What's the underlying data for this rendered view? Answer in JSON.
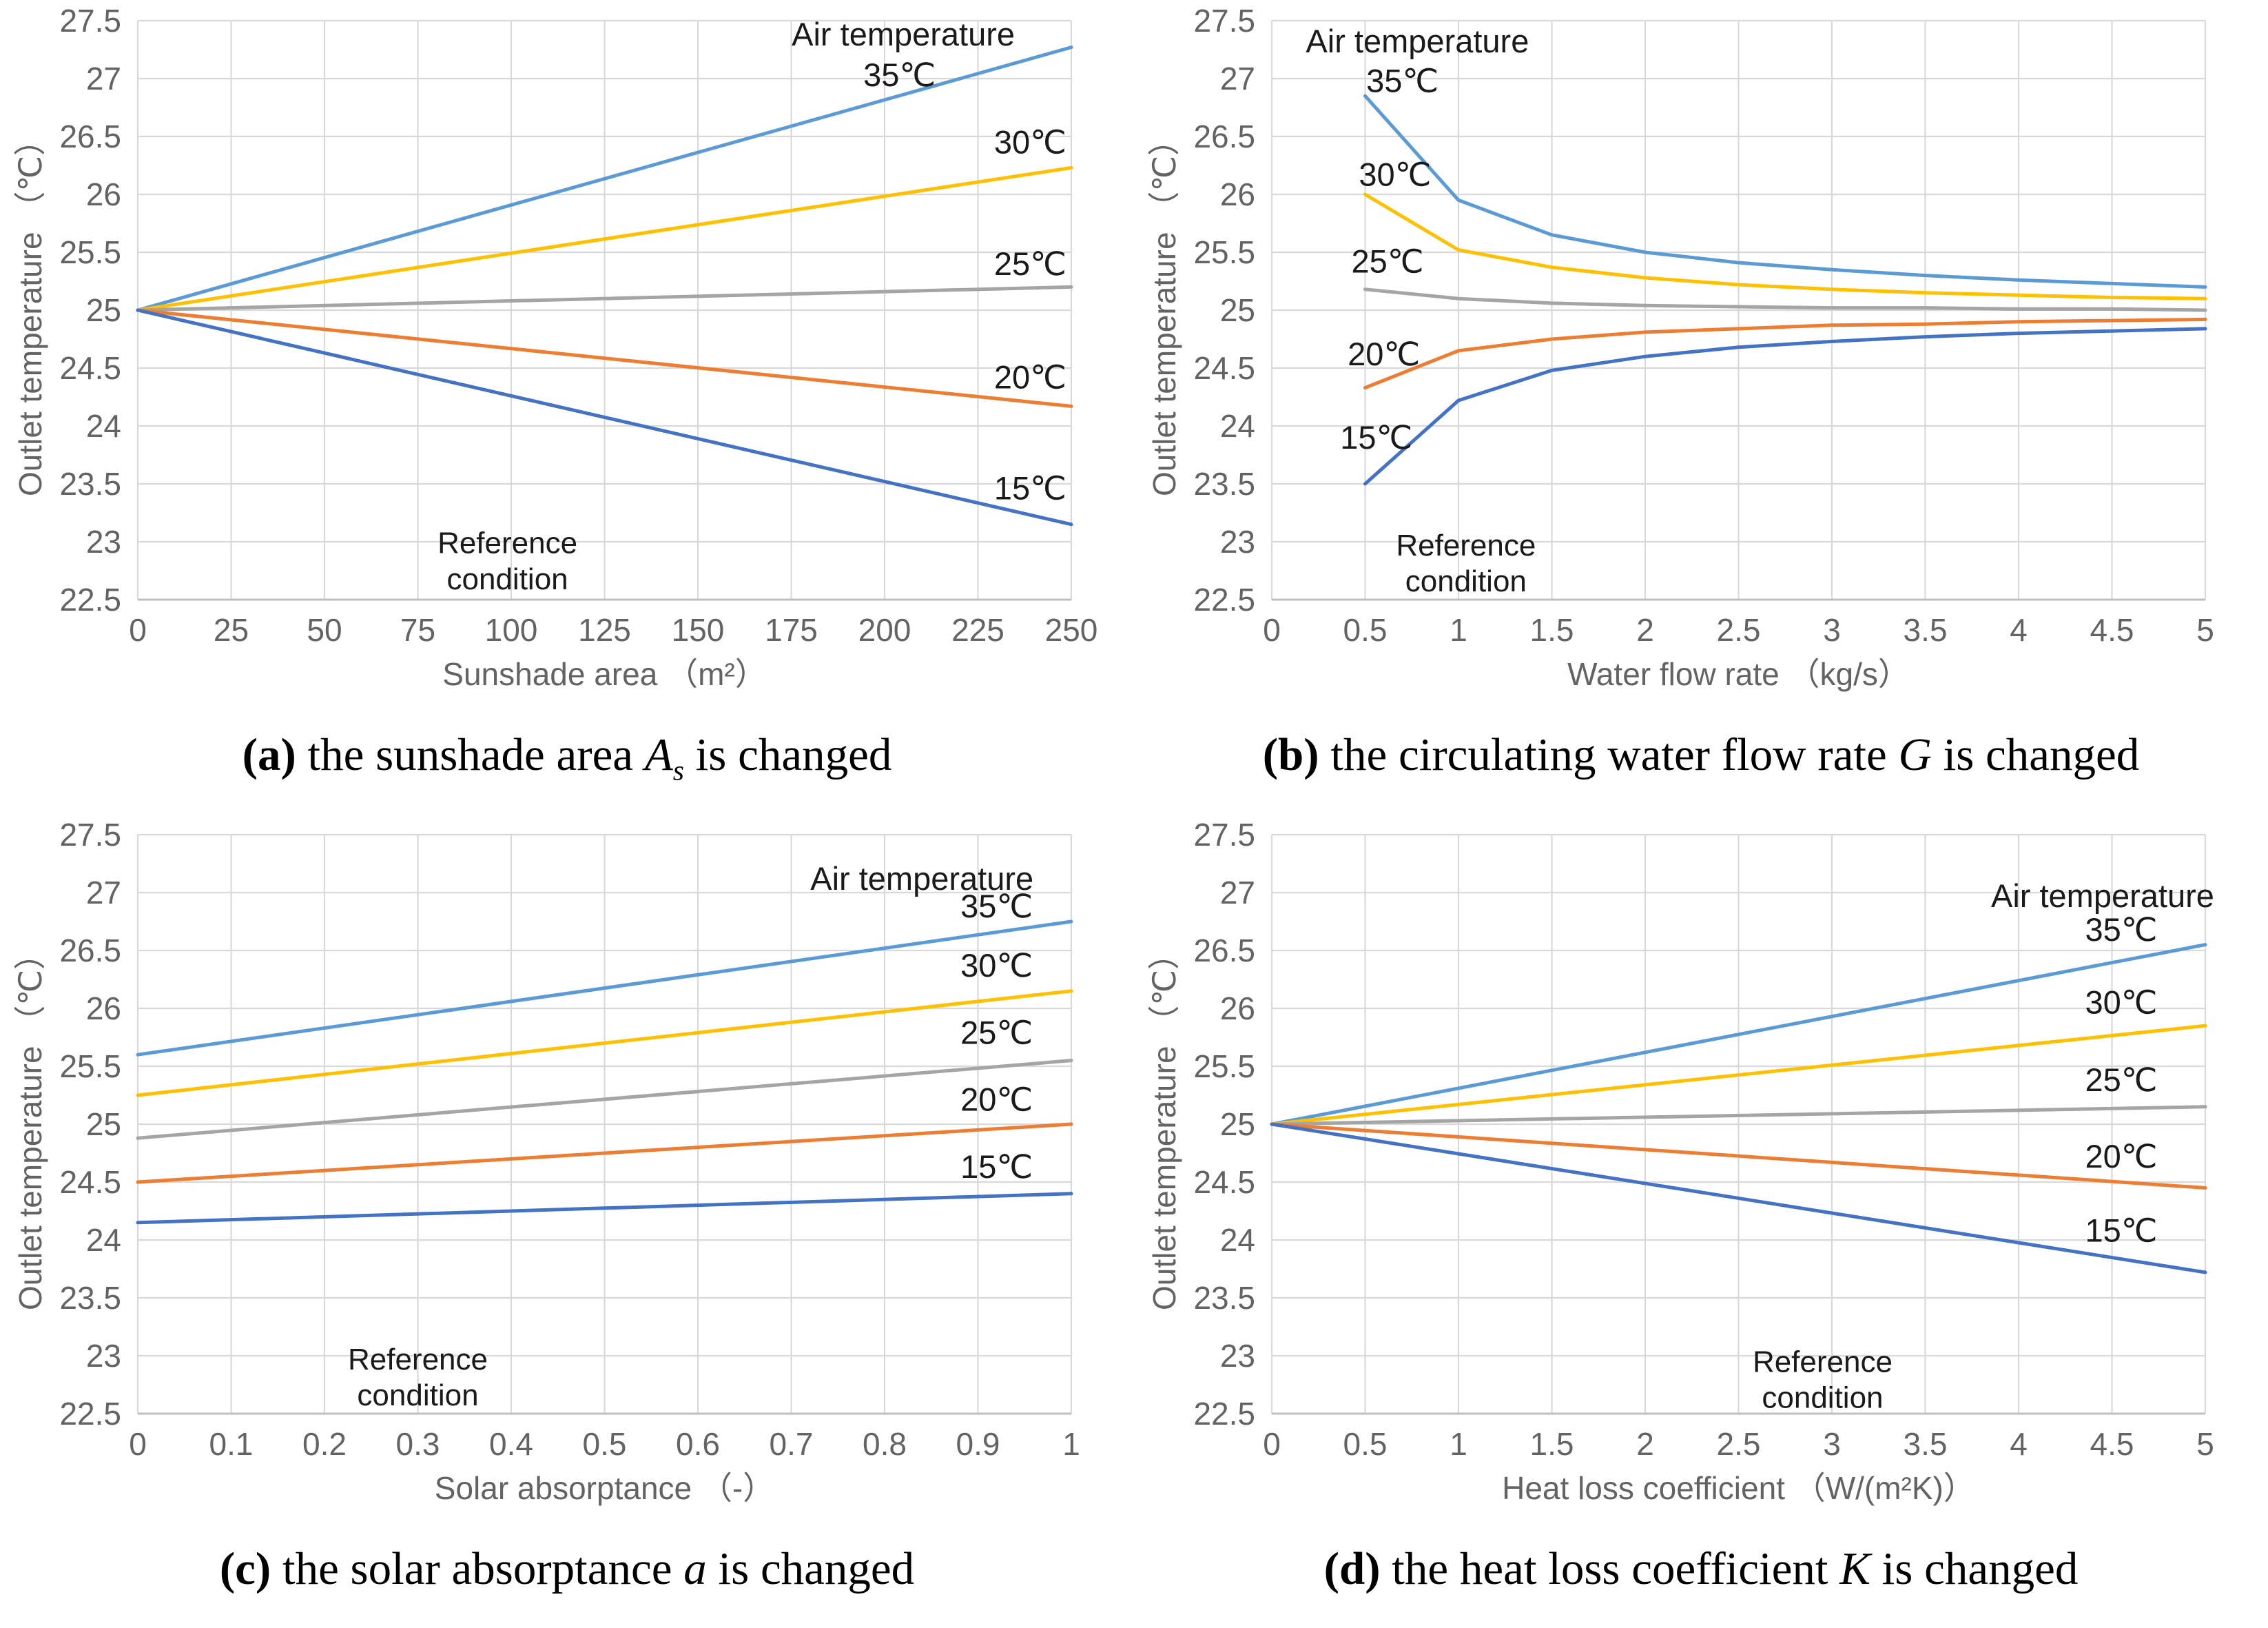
{
  "colors": {
    "series_35": "#5B9BD5",
    "series_30": "#FFC000",
    "series_25": "#A5A5A5",
    "series_20": "#ED7D31",
    "series_15": "#4472C4",
    "grid": "#D9D9D9",
    "axis_line": "#BFBFBF",
    "axis_text": "#636363",
    "annotation_text": "#1A1A1A"
  },
  "chart_data": [
    {
      "id": "a",
      "type": "line",
      "xlabel": "Sunshade area （m²）",
      "ylabel": "Outlet temperature （℃）",
      "xlim": [
        0,
        250
      ],
      "ylim": [
        22.5,
        27.5
      ],
      "xticks": [
        "0",
        "25",
        "50",
        "75",
        "100",
        "125",
        "150",
        "175",
        "200",
        "225",
        "250"
      ],
      "yticks": [
        "22.5",
        "23",
        "23.5",
        "24",
        "24.5",
        "25",
        "25.5",
        "26",
        "26.5",
        "27",
        "27.5"
      ],
      "grid": true,
      "legend_header": {
        "text": "Air temperature",
        "x": 205,
        "y": 27.38
      },
      "series": [
        {
          "name": "35℃",
          "key": "35c",
          "color_key": "series_35",
          "x": [
            0,
            250
          ],
          "y": [
            25.0,
            27.27
          ],
          "label": {
            "x": 204,
            "y": 27.03
          }
        },
        {
          "name": "30℃",
          "key": "30c",
          "color_key": "series_30",
          "x": [
            0,
            250
          ],
          "y": [
            25.0,
            26.23
          ],
          "label": {
            "x": 239,
            "y": 26.45
          }
        },
        {
          "name": "25℃",
          "key": "25c",
          "color_key": "series_25",
          "x": [
            0,
            250
          ],
          "y": [
            25.0,
            25.2
          ],
          "label": {
            "x": 239,
            "y": 25.4
          }
        },
        {
          "name": "20℃",
          "key": "20c",
          "color_key": "series_20",
          "x": [
            0,
            250
          ],
          "y": [
            25.0,
            24.17
          ],
          "label": {
            "x": 239,
            "y": 24.42
          }
        },
        {
          "name": "15℃",
          "key": "15c",
          "color_key": "series_15",
          "x": [
            0,
            250
          ],
          "y": [
            25.0,
            23.15
          ],
          "label": {
            "x": 239,
            "y": 23.46
          }
        }
      ],
      "reference": {
        "lines": [
          "Reference",
          "condition"
        ],
        "x": 99,
        "y": 22.99,
        "line_gap": 0.31
      },
      "caption": {
        "label": "(a)",
        "pre": " the sunshade area ",
        "var": "A",
        "var_sub": "s",
        "post": " is changed"
      }
    },
    {
      "id": "b",
      "type": "line",
      "xlabel": "Water flow rate （kg/s）",
      "ylabel": "Outlet temperature （℃）",
      "xlim": [
        0,
        5
      ],
      "ylim": [
        22.5,
        27.5
      ],
      "xticks": [
        "0",
        "0.5",
        "1",
        "1.5",
        "2",
        "2.5",
        "3",
        "3.5",
        "4",
        "4.5",
        "5"
      ],
      "yticks": [
        "22.5",
        "23",
        "23.5",
        "24",
        "24.5",
        "25",
        "25.5",
        "26",
        "26.5",
        "27",
        "27.5"
      ],
      "grid": true,
      "legend_header": {
        "text": "Air temperature",
        "x": 0.78,
        "y": 27.32
      },
      "series": [
        {
          "name": "35℃",
          "key": "35c",
          "color_key": "series_35",
          "x": [
            0.5,
            1,
            1.5,
            2,
            2.5,
            3,
            3.5,
            4,
            4.5,
            5
          ],
          "y": [
            26.85,
            25.95,
            25.65,
            25.5,
            25.41,
            25.35,
            25.3,
            25.26,
            25.23,
            25.2
          ],
          "label": {
            "x": 0.7,
            "y": 26.98
          }
        },
        {
          "name": "30℃",
          "key": "30c",
          "color_key": "series_30",
          "x": [
            0.5,
            1,
            1.5,
            2,
            2.5,
            3,
            3.5,
            4,
            4.5,
            5
          ],
          "y": [
            26.0,
            25.52,
            25.37,
            25.28,
            25.22,
            25.18,
            25.15,
            25.13,
            25.11,
            25.1
          ],
          "label": {
            "x": 0.66,
            "y": 26.17
          }
        },
        {
          "name": "25℃",
          "key": "25c",
          "color_key": "series_25",
          "x": [
            0.5,
            1,
            1.5,
            2,
            2.5,
            3,
            3.5,
            4,
            4.5,
            5
          ],
          "y": [
            25.18,
            25.1,
            25.06,
            25.04,
            25.03,
            25.02,
            25.02,
            25.01,
            25.01,
            25.0
          ],
          "label": {
            "x": 0.62,
            "y": 25.42
          }
        },
        {
          "name": "20℃",
          "key": "20c",
          "color_key": "series_20",
          "x": [
            0.5,
            1,
            1.5,
            2,
            2.5,
            3,
            3.5,
            4,
            4.5,
            5
          ],
          "y": [
            24.33,
            24.65,
            24.75,
            24.81,
            24.84,
            24.87,
            24.88,
            24.9,
            24.91,
            24.92
          ],
          "label": {
            "x": 0.6,
            "y": 24.62
          }
        },
        {
          "name": "15℃",
          "key": "15c",
          "color_key": "series_15",
          "x": [
            0.5,
            1,
            1.5,
            2,
            2.5,
            3,
            3.5,
            4,
            4.5,
            5
          ],
          "y": [
            23.5,
            24.22,
            24.48,
            24.6,
            24.68,
            24.73,
            24.77,
            24.8,
            24.82,
            24.84
          ],
          "label": {
            "x": 0.56,
            "y": 23.9
          }
        }
      ],
      "reference": {
        "lines": [
          "Reference",
          "condition"
        ],
        "x": 1.04,
        "y": 22.97,
        "line_gap": 0.31
      },
      "caption": {
        "label": "(b)",
        "pre": " the circulating water flow rate ",
        "var": "G",
        "var_sub": "",
        "post": " is changed"
      }
    },
    {
      "id": "c",
      "type": "line",
      "xlabel": "Solar absorptance （-）",
      "ylabel": "Outlet temperature （℃）",
      "xlim": [
        0,
        1
      ],
      "ylim": [
        22.5,
        27.5
      ],
      "xticks": [
        "0",
        "0.1",
        "0.2",
        "0.3",
        "0.4",
        "0.5",
        "0.6",
        "0.7",
        "0.8",
        "0.9",
        "1"
      ],
      "yticks": [
        "22.5",
        "23",
        "23.5",
        "24",
        "24.5",
        "25",
        "25.5",
        "26",
        "26.5",
        "27",
        "27.5"
      ],
      "grid": true,
      "legend_header": {
        "text": "Air temperature",
        "x": 0.84,
        "y": 27.12
      },
      "series": [
        {
          "name": "35℃",
          "key": "35c",
          "color_key": "series_35",
          "x": [
            0,
            1
          ],
          "y": [
            25.6,
            26.75
          ],
          "label": {
            "x": 0.92,
            "y": 26.88
          }
        },
        {
          "name": "30℃",
          "key": "30c",
          "color_key": "series_30",
          "x": [
            0,
            1
          ],
          "y": [
            25.25,
            26.15
          ],
          "label": {
            "x": 0.92,
            "y": 26.37
          }
        },
        {
          "name": "25℃",
          "key": "25c",
          "color_key": "series_25",
          "x": [
            0,
            1
          ],
          "y": [
            24.88,
            25.55
          ],
          "label": {
            "x": 0.92,
            "y": 25.79
          }
        },
        {
          "name": "20℃",
          "key": "20c",
          "color_key": "series_20",
          "x": [
            0,
            1
          ],
          "y": [
            24.5,
            25.0
          ],
          "label": {
            "x": 0.92,
            "y": 25.21
          }
        },
        {
          "name": "15℃",
          "key": "15c",
          "color_key": "series_15",
          "x": [
            0,
            1
          ],
          "y": [
            24.15,
            24.4
          ],
          "label": {
            "x": 0.92,
            "y": 24.63
          }
        }
      ],
      "reference": {
        "lines": [
          "Reference",
          "condition"
        ],
        "x": 0.3,
        "y": 22.97,
        "line_gap": 0.31
      },
      "caption": {
        "label": "(c)",
        "pre": " the solar absorptance ",
        "var": "a",
        "var_sub": "",
        "post": " is changed"
      }
    },
    {
      "id": "d",
      "type": "line",
      "xlabel": "Heat loss coefficient （W/(m²K)）",
      "ylabel": "Outlet temperature （℃）",
      "xlim": [
        0,
        5
      ],
      "ylim": [
        22.5,
        27.5
      ],
      "xticks": [
        "0",
        "0.5",
        "1",
        "1.5",
        "2",
        "2.5",
        "3",
        "3.5",
        "4",
        "4.5",
        "5"
      ],
      "yticks": [
        "22.5",
        "23",
        "23.5",
        "24",
        "24.5",
        "25",
        "25.5",
        "26",
        "26.5",
        "27",
        "27.5"
      ],
      "grid": true,
      "legend_header": {
        "text": "Air temperature",
        "x": 4.45,
        "y": 26.97
      },
      "series": [
        {
          "name": "35℃",
          "key": "35c",
          "color_key": "series_35",
          "x": [
            0,
            5
          ],
          "y": [
            25.0,
            26.55
          ],
          "label": {
            "x": 4.55,
            "y": 26.68
          }
        },
        {
          "name": "30℃",
          "key": "30c",
          "color_key": "series_30",
          "x": [
            0,
            5
          ],
          "y": [
            25.0,
            25.85
          ],
          "label": {
            "x": 4.55,
            "y": 26.05
          }
        },
        {
          "name": "25℃",
          "key": "25c",
          "color_key": "series_25",
          "x": [
            0,
            5
          ],
          "y": [
            25.0,
            25.15
          ],
          "label": {
            "x": 4.55,
            "y": 25.38
          }
        },
        {
          "name": "20℃",
          "key": "20c",
          "color_key": "series_20",
          "x": [
            0,
            5
          ],
          "y": [
            25.0,
            24.45
          ],
          "label": {
            "x": 4.55,
            "y": 24.72
          }
        },
        {
          "name": "15℃",
          "key": "15c",
          "color_key": "series_15",
          "x": [
            0,
            5
          ],
          "y": [
            25.0,
            23.72
          ],
          "label": {
            "x": 4.55,
            "y": 24.08
          }
        }
      ],
      "reference": {
        "lines": [
          "Reference",
          "condition"
        ],
        "x": 2.95,
        "y": 22.95,
        "line_gap": 0.31
      },
      "caption": {
        "label": "(d)",
        "pre": " the heat loss coefficient ",
        "var": "K",
        "var_sub": "",
        "post": " is changed"
      }
    }
  ]
}
